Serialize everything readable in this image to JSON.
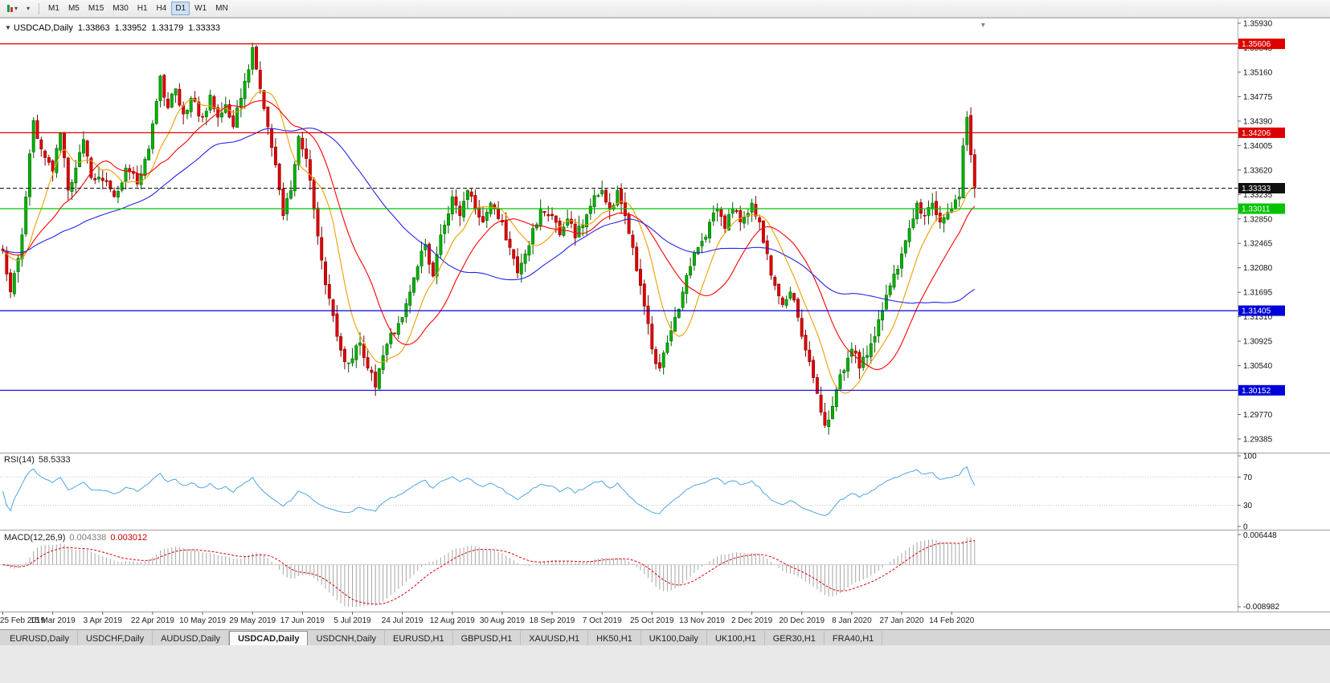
{
  "toolbar": {
    "caret_glyph": "▾",
    "timeframes": [
      {
        "label": "M1",
        "active": false
      },
      {
        "label": "M5",
        "active": false
      },
      {
        "label": "M15",
        "active": false
      },
      {
        "label": "M30",
        "active": false
      },
      {
        "label": "H1",
        "active": false
      },
      {
        "label": "H4",
        "active": false
      },
      {
        "label": "D1",
        "active": true
      },
      {
        "label": "W1",
        "active": false
      },
      {
        "label": "MN",
        "active": false
      }
    ]
  },
  "chart": {
    "title": {
      "symbol": "USDCAD,Daily",
      "open": "1.33863",
      "high": "1.33952",
      "low": "1.33179",
      "close": "1.33333"
    },
    "price_axis_labels": [
      "1.35930",
      "1.35545",
      "1.35160",
      "1.34775",
      "1.34390",
      "1.34005",
      "1.33620",
      "1.33235",
      "1.32850",
      "1.32465",
      "1.32080",
      "1.31695",
      "1.31310",
      "1.30925",
      "1.30540",
      "1.30155",
      "1.29770",
      "1.29385"
    ],
    "levels": [
      {
        "label": "1.35606",
        "value": 1.35606,
        "color": "#dd0000",
        "dash": false,
        "name": "resistance-line-upper"
      },
      {
        "label": "1.34206",
        "value": 1.34206,
        "color": "#dd0000",
        "dash": false,
        "name": "resistance-line-lower"
      },
      {
        "label": "1.33333",
        "value": 1.33333,
        "color": "#101010",
        "dash": true,
        "name": "bid-price-line"
      },
      {
        "label": "1.33011",
        "value": 1.33011,
        "color": "#00c300",
        "dash": false,
        "name": "support-line-green"
      },
      {
        "label": "1.31405",
        "value": 1.31405,
        "color": "#0000d8",
        "dash": false,
        "name": "support-line-blue-upper"
      },
      {
        "label": "1.30152",
        "value": 1.30152,
        "color": "#0000d8",
        "dash": false,
        "name": "support-line-blue-lower"
      }
    ],
    "date_axis_labels": [
      "25 Feb 2019",
      "15 Mar 2019",
      "3 Apr 2019",
      "22 Apr 2019",
      "10 May 2019",
      "29 May 2019",
      "17 Jun 2019",
      "5 Jul 2019",
      "24 Jul 2019",
      "12 Aug 2019",
      "30 Aug 2019",
      "18 Sep 2019",
      "7 Oct 2019",
      "25 Oct 2019",
      "13 Nov 2019",
      "2 Dec 2019",
      "20 Dec 2019",
      "8 Jan 2020",
      "27 Jan 2020",
      "14 Feb 2020"
    ]
  },
  "rsi": {
    "label": "RSI(14)",
    "value": "58.5333",
    "axis_labels": [
      100,
      70,
      30,
      0
    ],
    "guide_levels": [
      70,
      30
    ],
    "line_color": "#4ea6e0"
  },
  "macd": {
    "label": "MACD(12,26,9)",
    "value1": "0.004338",
    "value2": "0.003012",
    "axis_top": "0.006448",
    "axis_bottom": "-0.008982",
    "bar_color": "#a6a6a6",
    "signal_color": "#e00000"
  },
  "tabs": [
    {
      "label": "EURUSD,Daily",
      "active": false
    },
    {
      "label": "USDCHF,Daily",
      "active": false
    },
    {
      "label": "AUDUSD,Daily",
      "active": false
    },
    {
      "label": "USDCAD,Daily",
      "active": true
    },
    {
      "label": "USDCNH,Daily",
      "active": false
    },
    {
      "label": "EURUSD,H1",
      "active": false
    },
    {
      "label": "GBPUSD,H1",
      "active": false
    },
    {
      "label": "XAUUSD,H1",
      "active": false
    },
    {
      "label": "HK50,H1",
      "active": false
    },
    {
      "label": "UK100,Daily",
      "active": false
    },
    {
      "label": "UK100,H1",
      "active": false
    },
    {
      "label": "GER30,H1",
      "active": false
    },
    {
      "label": "FRA40,H1",
      "active": false
    }
  ],
  "chart_data": {
    "type": "candlestick",
    "symbol": "USDCAD",
    "timeframe": "Daily",
    "num_candles": 254,
    "price_range": [
      1.29385,
      1.3593
    ],
    "candle_up_color": "#00b000",
    "candle_down_color": "#e00000",
    "close_anchors": [
      [
        0,
        1.3235
      ],
      [
        2,
        1.317
      ],
      [
        5,
        1.326
      ],
      [
        8,
        1.344
      ],
      [
        10,
        1.3395
      ],
      [
        13,
        1.336
      ],
      [
        15,
        1.342
      ],
      [
        17,
        1.333
      ],
      [
        19,
        1.3365
      ],
      [
        21,
        1.341
      ],
      [
        23,
        1.335
      ],
      [
        26,
        1.3345
      ],
      [
        29,
        1.332
      ],
      [
        32,
        1.3365
      ],
      [
        35,
        1.334
      ],
      [
        38,
        1.3395
      ],
      [
        40,
        1.347
      ],
      [
        41,
        1.351
      ],
      [
        43,
        1.346
      ],
      [
        45,
        1.349
      ],
      [
        47,
        1.345
      ],
      [
        49,
        1.3475
      ],
      [
        52,
        1.3445
      ],
      [
        54,
        1.348
      ],
      [
        56,
        1.3445
      ],
      [
        58,
        1.3465
      ],
      [
        60,
        1.343
      ],
      [
        62,
        1.3475
      ],
      [
        64,
        1.352
      ],
      [
        65,
        1.3555
      ],
      [
        67,
        1.349
      ],
      [
        69,
        1.343
      ],
      [
        71,
        1.337
      ],
      [
        73,
        1.329
      ],
      [
        75,
        1.333
      ],
      [
        77,
        1.3415
      ],
      [
        79,
        1.338
      ],
      [
        81,
        1.33
      ],
      [
        83,
        1.322
      ],
      [
        85,
        1.316
      ],
      [
        87,
        1.31
      ],
      [
        89,
        1.306
      ],
      [
        91,
        1.3065
      ],
      [
        93,
        1.309
      ],
      [
        95,
        1.305
      ],
      [
        97,
        1.302
      ],
      [
        99,
        1.307
      ],
      [
        101,
        1.3105
      ],
      [
        104,
        1.313
      ],
      [
        106,
        1.317
      ],
      [
        108,
        1.321
      ],
      [
        110,
        1.3245
      ],
      [
        112,
        1.3195
      ],
      [
        114,
        1.326
      ],
      [
        117,
        1.332
      ],
      [
        119,
        1.329
      ],
      [
        121,
        1.333
      ],
      [
        123,
        1.33
      ],
      [
        125,
        1.328
      ],
      [
        127,
        1.331
      ],
      [
        130,
        1.328
      ],
      [
        132,
        1.324
      ],
      [
        134,
        1.32
      ],
      [
        136,
        1.323
      ],
      [
        138,
        1.327
      ],
      [
        140,
        1.33
      ],
      [
        143,
        1.329
      ],
      [
        145,
        1.326
      ],
      [
        147,
        1.3285
      ],
      [
        149,
        1.3255
      ],
      [
        151,
        1.3275
      ],
      [
        153,
        1.3305
      ],
      [
        156,
        1.333
      ],
      [
        158,
        1.33
      ],
      [
        160,
        1.333
      ],
      [
        162,
        1.329
      ],
      [
        164,
        1.324
      ],
      [
        166,
        1.318
      ],
      [
        168,
        1.312
      ],
      [
        169,
        1.308
      ],
      [
        171,
        1.305
      ],
      [
        173,
        1.309
      ],
      [
        175,
        1.313
      ],
      [
        177,
        1.317
      ],
      [
        179,
        1.321
      ],
      [
        182,
        1.325
      ],
      [
        184,
        1.328
      ],
      [
        186,
        1.33
      ],
      [
        188,
        1.327
      ],
      [
        190,
        1.33
      ],
      [
        192,
        1.328
      ],
      [
        195,
        1.331
      ],
      [
        197,
        1.328
      ],
      [
        199,
        1.323
      ],
      [
        201,
        1.318
      ],
      [
        203,
        1.315
      ],
      [
        205,
        1.317
      ],
      [
        207,
        1.313
      ],
      [
        208,
        1.31
      ],
      [
        210,
        1.306
      ],
      [
        212,
        1.301
      ],
      [
        214,
        1.296
      ],
      [
        216,
        1.299
      ],
      [
        218,
        1.304
      ],
      [
        221,
        1.308
      ],
      [
        223,
        1.305
      ],
      [
        225,
        1.307
      ],
      [
        227,
        1.31
      ],
      [
        229,
        1.314
      ],
      [
        231,
        1.318
      ],
      [
        234,
        1.323
      ],
      [
        236,
        1.327
      ],
      [
        238,
        1.331
      ],
      [
        240,
        1.329
      ],
      [
        242,
        1.331
      ],
      [
        244,
        1.328
      ],
      [
        247,
        1.33
      ],
      [
        249,
        1.332
      ],
      [
        250,
        1.34
      ],
      [
        251,
        1.3445
      ],
      [
        252,
        1.3386
      ],
      [
        253,
        1.33333
      ]
    ],
    "last_candle": {
      "open": 1.33863,
      "high": 1.33952,
      "low": 1.33179,
      "close": 1.33333
    },
    "moving_averages": [
      {
        "period": 10,
        "color": "#eca000"
      },
      {
        "period": 21,
        "color": "#ff0000"
      },
      {
        "period": 50,
        "color": "#2424e8"
      }
    ],
    "rsi_period": 14,
    "macd_params": [
      12,
      26,
      9
    ],
    "macd_range": [
      -0.008982,
      0.006448
    ],
    "rsi_axis_range": [
      0,
      100
    ],
    "date_tick_step": 13
  }
}
